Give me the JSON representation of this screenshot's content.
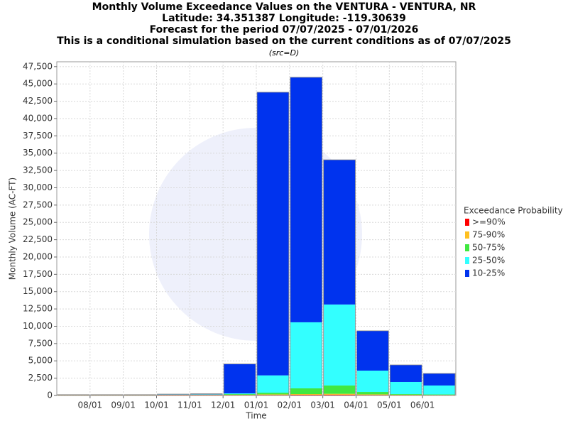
{
  "chart_data": {
    "type": "stacked-bar",
    "title": "Monthly Volume Exceedance Values on the VENTURA - VENTURA, NR",
    "title_lines": [
      "Latitude: 34.351387 Longitude: -119.30639",
      "Forecast for the period 07/07/2025 - 07/01/2026",
      "This is a conditional simulation based on the current conditions as of 07/07/2025"
    ],
    "subtitle": "(src=D)",
    "x_label": "Time",
    "y_label": "Monthly Volume (AC-FT)",
    "legend_title": "Exceedance Probability",
    "categories": [
      null,
      "08/01",
      "09/01",
      "10/01",
      "11/01",
      "12/01",
      "01/01",
      "02/01",
      "03/01",
      "04/01",
      "05/01",
      "06/01"
    ],
    "series": [
      {
        "name": ">=90%",
        "color": "#ff0000",
        "values": [
          60,
          60,
          60,
          80,
          80,
          60,
          80,
          100,
          120,
          80,
          50,
          40
        ]
      },
      {
        "name": "75-90%",
        "color": "#ffc020",
        "values": [
          20,
          20,
          20,
          20,
          30,
          40,
          80,
          100,
          120,
          80,
          50,
          40
        ]
      },
      {
        "name": "50-75%",
        "color": "#40e840",
        "values": [
          20,
          20,
          20,
          20,
          30,
          100,
          240,
          830,
          1200,
          350,
          100,
          70
        ]
      },
      {
        "name": "25-50%",
        "color": "#33ffff",
        "values": [
          10,
          10,
          10,
          20,
          30,
          100,
          2500,
          9540,
          11700,
          3080,
          1750,
          1290
        ]
      },
      {
        "name": "10-25%",
        "color": "#0033ee",
        "values": [
          10,
          10,
          10,
          60,
          80,
          4250,
          40900,
          35390,
          20900,
          5750,
          2460,
          1740
        ]
      }
    ],
    "ylim": [
      0,
      48200
    ],
    "yticks": [
      0,
      {
        "value": 2500,
        "label": "2,500"
      },
      {
        "value": 5000,
        "label": "5,000"
      },
      {
        "value": 7500,
        "label": "7,500"
      },
      {
        "value": 10000,
        "label": "10,000"
      },
      {
        "value": 12500,
        "label": "12,500"
      },
      {
        "value": 15000,
        "label": "15,000"
      },
      {
        "value": 17500,
        "label": "17,500"
      },
      {
        "value": 20000,
        "label": "20,000"
      },
      {
        "value": 22500,
        "label": "22,500"
      },
      {
        "value": 25000,
        "label": "25,000"
      },
      {
        "value": 27500,
        "label": "27,500"
      },
      {
        "value": 30000,
        "label": "30,000"
      },
      {
        "value": 32500,
        "label": "32,500"
      },
      {
        "value": 35000,
        "label": "35,000"
      },
      {
        "value": 37500,
        "label": "37,500"
      },
      {
        "value": 40000,
        "label": "40,000"
      },
      {
        "value": 42500,
        "label": "42,500"
      },
      {
        "value": 45000,
        "label": "45,000"
      },
      {
        "value": 47500,
        "label": "47,500"
      }
    ],
    "grid": true,
    "legend": "right"
  }
}
